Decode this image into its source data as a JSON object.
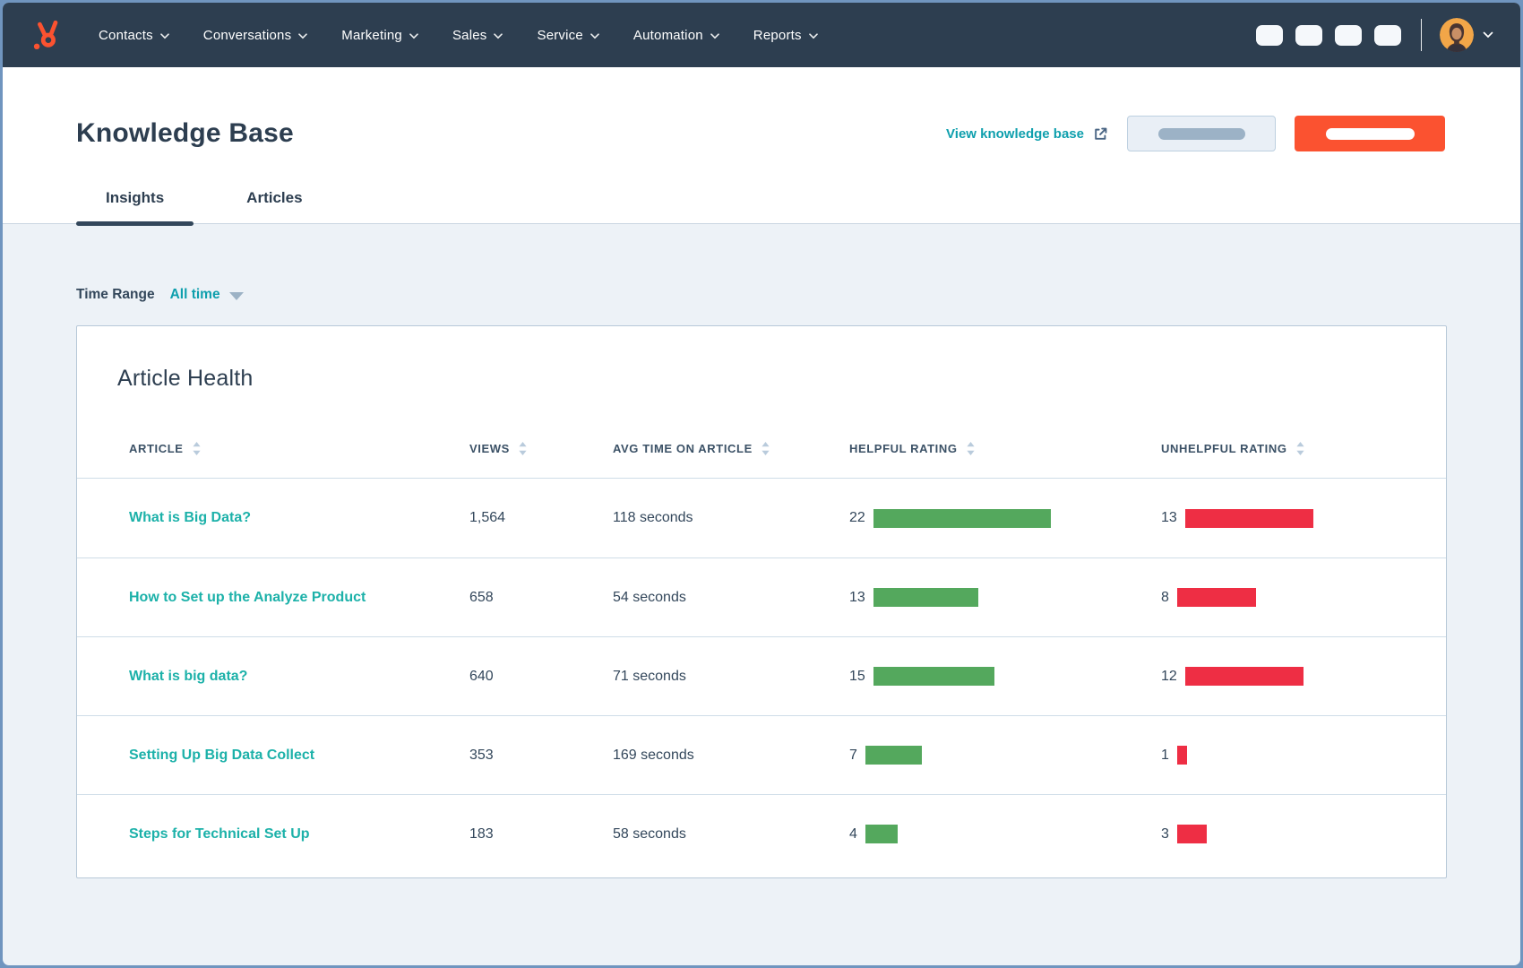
{
  "colors": {
    "nav_bg": "#2d3e50",
    "accent_orange": "#fb5230",
    "link_teal": "#0e9fad",
    "article_link_teal": "#1cb1a9",
    "bar_green": "#54a85d",
    "bar_red": "#ee2e44",
    "text_dark": "#33475b"
  },
  "icons": {
    "logo": "hubspot-sprocket",
    "nav_chevron": "chevron-down",
    "external_link": "external-link",
    "sort": "sort-arrows",
    "time_caret": "caret-down",
    "account_chevron": "chevron-down"
  },
  "nav": {
    "items": [
      {
        "label": "Contacts"
      },
      {
        "label": "Conversations"
      },
      {
        "label": "Marketing"
      },
      {
        "label": "Sales"
      },
      {
        "label": "Service"
      },
      {
        "label": "Automation"
      },
      {
        "label": "Reports"
      }
    ],
    "placeholder_buttons": 4
  },
  "header": {
    "title": "Knowledge Base",
    "view_link_label": "View knowledge base"
  },
  "tabs": [
    {
      "label": "Insights",
      "active": true
    },
    {
      "label": "Articles",
      "active": false
    }
  ],
  "filter": {
    "label": "Time Range",
    "value": "All time"
  },
  "card": {
    "title": "Article Health"
  },
  "chart_data": {
    "type": "table",
    "columns": [
      "ARTICLE",
      "VIEWS",
      "AVG TIME ON ARTICLE",
      "HELPFUL RATING",
      "UNHELPFUL RATING"
    ],
    "rows": [
      {
        "article": "What is Big Data?",
        "views": "1,564",
        "avg_time": "118 seconds",
        "helpful": 22,
        "unhelpful": 13
      },
      {
        "article": "How to Set up the Analyze Product",
        "views": "658",
        "avg_time": "54 seconds",
        "helpful": 13,
        "unhelpful": 8
      },
      {
        "article": "What is big data?",
        "views": "640",
        "avg_time": "71 seconds",
        "helpful": 15,
        "unhelpful": 12
      },
      {
        "article": "Setting Up Big Data Collect",
        "views": "353",
        "avg_time": "169 seconds",
        "helpful": 7,
        "unhelpful": 1
      },
      {
        "article": "Steps for Technical Set Up",
        "views": "183",
        "avg_time": "58 seconds",
        "helpful": 4,
        "unhelpful": 3
      }
    ]
  }
}
